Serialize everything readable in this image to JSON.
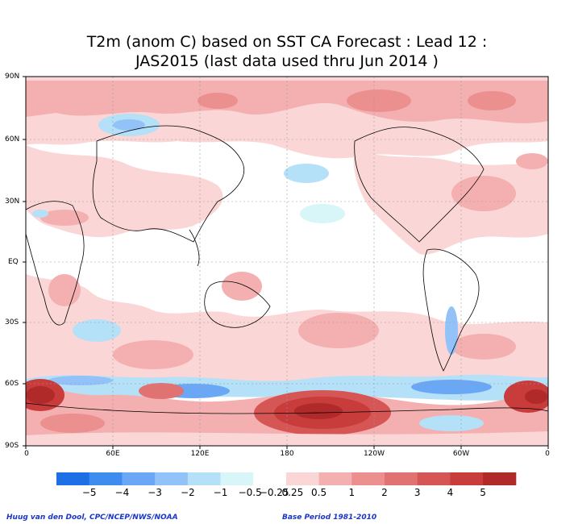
{
  "title": {
    "line1": "T2m (anom C) based on SST CA Forecast : Lead 12 :",
    "line2": "JAS2015 (last data used thru Jun 2014 )"
  },
  "map": {
    "lat_labels": [
      "90N",
      "60N",
      "30N",
      "EQ",
      "30S",
      "60S",
      "90S"
    ],
    "lon_labels": [
      "0",
      "60E",
      "120E",
      "180",
      "120W",
      "60W",
      "0"
    ]
  },
  "legend": {
    "bins": [
      {
        "color": "#1e6fe6"
      },
      {
        "color": "#3f8cf0"
      },
      {
        "color": "#6aa8f5"
      },
      {
        "color": "#92c2f8"
      },
      {
        "color": "#b4e0f8"
      },
      {
        "color": "#d8f5f8"
      },
      {
        "color": "#ffffff"
      },
      {
        "color": "#fbd6d6"
      },
      {
        "color": "#f4b0b0"
      },
      {
        "color": "#ec8f8f"
      },
      {
        "color": "#e07272"
      },
      {
        "color": "#d65555"
      },
      {
        "color": "#c83c3c"
      },
      {
        "color": "#b02a2a"
      }
    ],
    "labels": [
      "−5",
      "−4",
      "−3",
      "−2",
      "−1",
      "−0.5",
      "−0.25",
      "0.25",
      "0.5",
      "1",
      "2",
      "3",
      "4",
      "5"
    ]
  },
  "footer": {
    "left": "Huug van den Dool, CPC/NCEP/NWS/NOAA",
    "right": "Base Period 1981-2010"
  }
}
